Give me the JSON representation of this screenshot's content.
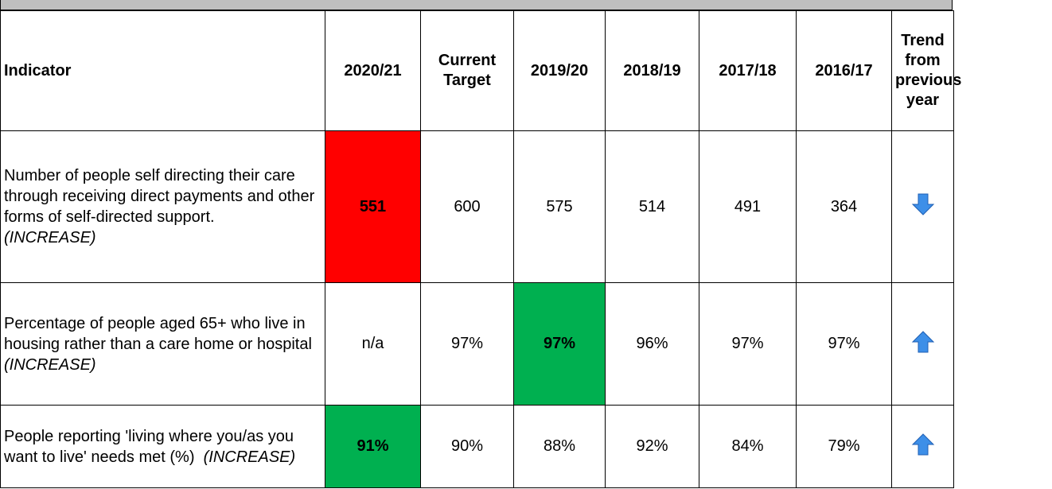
{
  "table": {
    "header": [
      "Indicator",
      "2020/21",
      "Current Target",
      "2019/20",
      "2018/19",
      "2017/18",
      "2016/17",
      "Trend from previous year"
    ],
    "rows": [
      {
        "indicator": "Number of people self directing their care through receiving direct payments and other forms of self-directed support.",
        "direction": "(INCREASE)",
        "values": [
          "551",
          "600",
          "575",
          "514",
          "491",
          "364"
        ],
        "highlight": {
          "column": 0,
          "color": "#ff0000"
        },
        "trend": "down"
      },
      {
        "indicator": "Percentage of people aged 65+ who live in housing rather than a care home or hospital",
        "direction": "(INCREASE)",
        "values": [
          "n/a",
          "97%",
          "97%",
          "96%",
          "97%",
          "97%"
        ],
        "highlight": {
          "column": 2,
          "color": "#00b050"
        },
        "trend": "up"
      },
      {
        "indicator": "People reporting 'living where you/as you want to live' needs met (%)",
        "direction": "(INCREASE)",
        "values": [
          "91%",
          "90%",
          "88%",
          "92%",
          "84%",
          "79%"
        ],
        "highlight": {
          "column": 0,
          "color": "#00b050"
        },
        "trend": "up",
        "inline_direction": true
      }
    ]
  }
}
